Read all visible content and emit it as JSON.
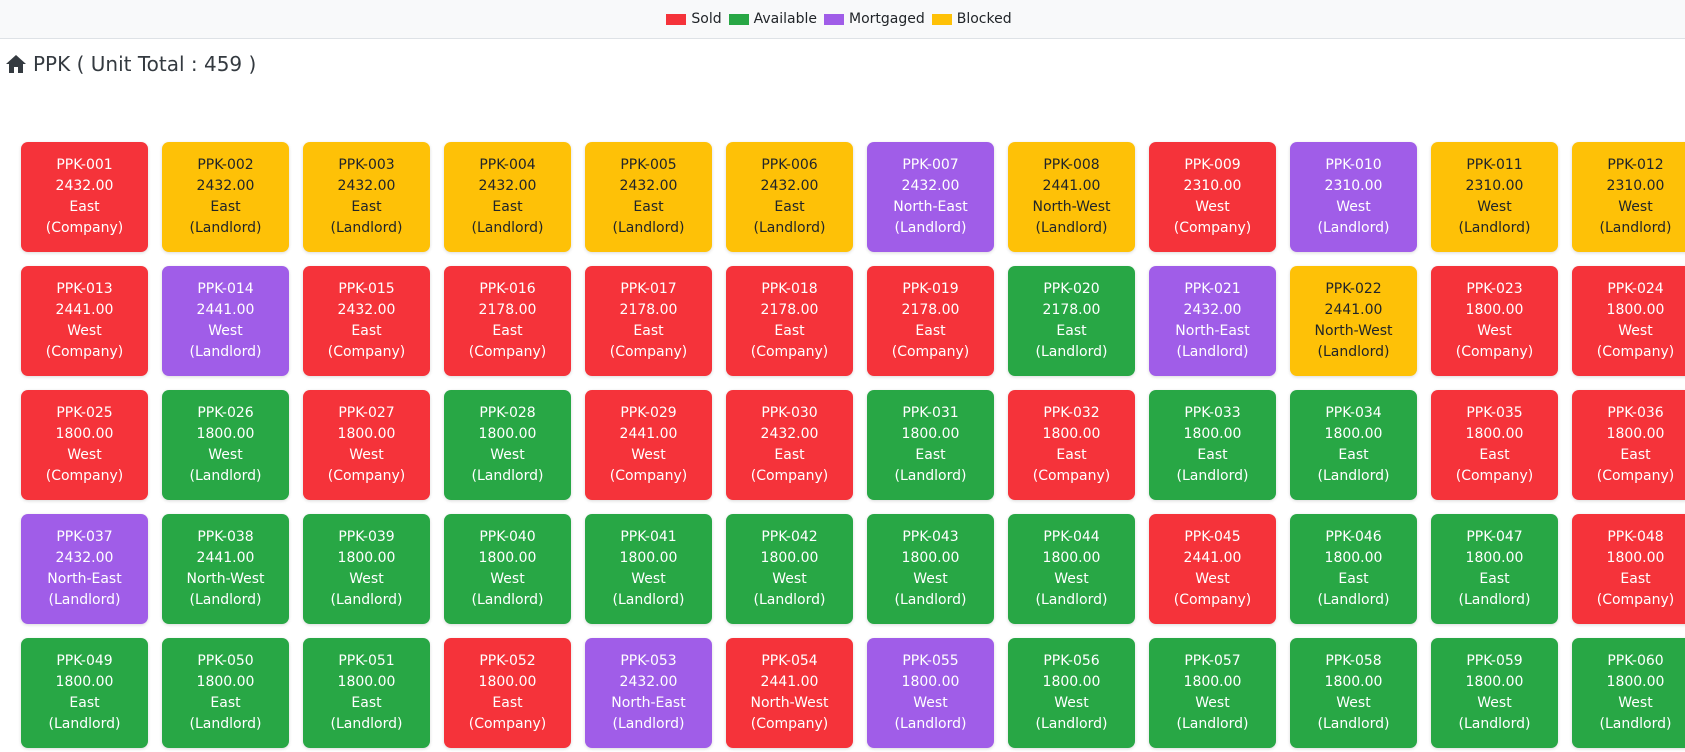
{
  "colors": {
    "sold": "#f5333a",
    "available": "#28a745",
    "mortgaged": "#a05de8",
    "blocked": "#fec107"
  },
  "legend": [
    {
      "label": "Sold",
      "status": "sold"
    },
    {
      "label": "Available",
      "status": "available"
    },
    {
      "label": "Mortgaged",
      "status": "mortgaged"
    },
    {
      "label": "Blocked",
      "status": "blocked"
    }
  ],
  "header": {
    "icon": "home-icon",
    "title": "PPK ( Unit Total : 459 )"
  },
  "units": [
    {
      "code": "PPK-001",
      "area": "2432.00",
      "facing": "East",
      "owner": "(Company)",
      "status": "sold"
    },
    {
      "code": "PPK-002",
      "area": "2432.00",
      "facing": "East",
      "owner": "(Landlord)",
      "status": "blocked"
    },
    {
      "code": "PPK-003",
      "area": "2432.00",
      "facing": "East",
      "owner": "(Landlord)",
      "status": "blocked"
    },
    {
      "code": "PPK-004",
      "area": "2432.00",
      "facing": "East",
      "owner": "(Landlord)",
      "status": "blocked"
    },
    {
      "code": "PPK-005",
      "area": "2432.00",
      "facing": "East",
      "owner": "(Landlord)",
      "status": "blocked"
    },
    {
      "code": "PPK-006",
      "area": "2432.00",
      "facing": "East",
      "owner": "(Landlord)",
      "status": "blocked"
    },
    {
      "code": "PPK-007",
      "area": "2432.00",
      "facing": "North-East",
      "owner": "(Landlord)",
      "status": "mortgaged"
    },
    {
      "code": "PPK-008",
      "area": "2441.00",
      "facing": "North-West",
      "owner": "(Landlord)",
      "status": "blocked"
    },
    {
      "code": "PPK-009",
      "area": "2310.00",
      "facing": "West",
      "owner": "(Company)",
      "status": "sold"
    },
    {
      "code": "PPK-010",
      "area": "2310.00",
      "facing": "West",
      "owner": "(Landlord)",
      "status": "mortgaged"
    },
    {
      "code": "PPK-011",
      "area": "2310.00",
      "facing": "West",
      "owner": "(Landlord)",
      "status": "blocked"
    },
    {
      "code": "PPK-012",
      "area": "2310.00",
      "facing": "West",
      "owner": "(Landlord)",
      "status": "blocked"
    },
    {
      "code": "PPK-013",
      "area": "2441.00",
      "facing": "West",
      "owner": "(Company)",
      "status": "sold"
    },
    {
      "code": "PPK-014",
      "area": "2441.00",
      "facing": "West",
      "owner": "(Landlord)",
      "status": "mortgaged"
    },
    {
      "code": "PPK-015",
      "area": "2432.00",
      "facing": "East",
      "owner": "(Company)",
      "status": "sold"
    },
    {
      "code": "PPK-016",
      "area": "2178.00",
      "facing": "East",
      "owner": "(Company)",
      "status": "sold"
    },
    {
      "code": "PPK-017",
      "area": "2178.00",
      "facing": "East",
      "owner": "(Company)",
      "status": "sold"
    },
    {
      "code": "PPK-018",
      "area": "2178.00",
      "facing": "East",
      "owner": "(Company)",
      "status": "sold"
    },
    {
      "code": "PPK-019",
      "area": "2178.00",
      "facing": "East",
      "owner": "(Company)",
      "status": "sold"
    },
    {
      "code": "PPK-020",
      "area": "2178.00",
      "facing": "East",
      "owner": "(Landlord)",
      "status": "available"
    },
    {
      "code": "PPK-021",
      "area": "2432.00",
      "facing": "North-East",
      "owner": "(Landlord)",
      "status": "mortgaged"
    },
    {
      "code": "PPK-022",
      "area": "2441.00",
      "facing": "North-West",
      "owner": "(Landlord)",
      "status": "blocked"
    },
    {
      "code": "PPK-023",
      "area": "1800.00",
      "facing": "West",
      "owner": "(Company)",
      "status": "sold"
    },
    {
      "code": "PPK-024",
      "area": "1800.00",
      "facing": "West",
      "owner": "(Company)",
      "status": "sold"
    },
    {
      "code": "PPK-025",
      "area": "1800.00",
      "facing": "West",
      "owner": "(Company)",
      "status": "sold"
    },
    {
      "code": "PPK-026",
      "area": "1800.00",
      "facing": "West",
      "owner": "(Landlord)",
      "status": "available"
    },
    {
      "code": "PPK-027",
      "area": "1800.00",
      "facing": "West",
      "owner": "(Company)",
      "status": "sold"
    },
    {
      "code": "PPK-028",
      "area": "1800.00",
      "facing": "West",
      "owner": "(Landlord)",
      "status": "available"
    },
    {
      "code": "PPK-029",
      "area": "2441.00",
      "facing": "West",
      "owner": "(Company)",
      "status": "sold"
    },
    {
      "code": "PPK-030",
      "area": "2432.00",
      "facing": "East",
      "owner": "(Company)",
      "status": "sold"
    },
    {
      "code": "PPK-031",
      "area": "1800.00",
      "facing": "East",
      "owner": "(Landlord)",
      "status": "available"
    },
    {
      "code": "PPK-032",
      "area": "1800.00",
      "facing": "East",
      "owner": "(Company)",
      "status": "sold"
    },
    {
      "code": "PPK-033",
      "area": "1800.00",
      "facing": "East",
      "owner": "(Landlord)",
      "status": "available"
    },
    {
      "code": "PPK-034",
      "area": "1800.00",
      "facing": "East",
      "owner": "(Landlord)",
      "status": "available"
    },
    {
      "code": "PPK-035",
      "area": "1800.00",
      "facing": "East",
      "owner": "(Company)",
      "status": "sold"
    },
    {
      "code": "PPK-036",
      "area": "1800.00",
      "facing": "East",
      "owner": "(Company)",
      "status": "sold"
    },
    {
      "code": "PPK-037",
      "area": "2432.00",
      "facing": "North-East",
      "owner": "(Landlord)",
      "status": "mortgaged"
    },
    {
      "code": "PPK-038",
      "area": "2441.00",
      "facing": "North-West",
      "owner": "(Landlord)",
      "status": "available"
    },
    {
      "code": "PPK-039",
      "area": "1800.00",
      "facing": "West",
      "owner": "(Landlord)",
      "status": "available"
    },
    {
      "code": "PPK-040",
      "area": "1800.00",
      "facing": "West",
      "owner": "(Landlord)",
      "status": "available"
    },
    {
      "code": "PPK-041",
      "area": "1800.00",
      "facing": "West",
      "owner": "(Landlord)",
      "status": "available"
    },
    {
      "code": "PPK-042",
      "area": "1800.00",
      "facing": "West",
      "owner": "(Landlord)",
      "status": "available"
    },
    {
      "code": "PPK-043",
      "area": "1800.00",
      "facing": "West",
      "owner": "(Landlord)",
      "status": "available"
    },
    {
      "code": "PPK-044",
      "area": "1800.00",
      "facing": "West",
      "owner": "(Landlord)",
      "status": "available"
    },
    {
      "code": "PPK-045",
      "area": "2441.00",
      "facing": "West",
      "owner": "(Company)",
      "status": "sold"
    },
    {
      "code": "PPK-046",
      "area": "1800.00",
      "facing": "East",
      "owner": "(Landlord)",
      "status": "available"
    },
    {
      "code": "PPK-047",
      "area": "1800.00",
      "facing": "East",
      "owner": "(Landlord)",
      "status": "available"
    },
    {
      "code": "PPK-048",
      "area": "1800.00",
      "facing": "East",
      "owner": "(Company)",
      "status": "sold"
    },
    {
      "code": "PPK-049",
      "area": "1800.00",
      "facing": "East",
      "owner": "(Landlord)",
      "status": "available"
    },
    {
      "code": "PPK-050",
      "area": "1800.00",
      "facing": "East",
      "owner": "(Landlord)",
      "status": "available"
    },
    {
      "code": "PPK-051",
      "area": "1800.00",
      "facing": "East",
      "owner": "(Landlord)",
      "status": "available"
    },
    {
      "code": "PPK-052",
      "area": "1800.00",
      "facing": "East",
      "owner": "(Company)",
      "status": "sold"
    },
    {
      "code": "PPK-053",
      "area": "2432.00",
      "facing": "North-East",
      "owner": "(Landlord)",
      "status": "mortgaged"
    },
    {
      "code": "PPK-054",
      "area": "2441.00",
      "facing": "North-West",
      "owner": "(Company)",
      "status": "sold"
    },
    {
      "code": "PPK-055",
      "area": "1800.00",
      "facing": "West",
      "owner": "(Landlord)",
      "status": "mortgaged"
    },
    {
      "code": "PPK-056",
      "area": "1800.00",
      "facing": "West",
      "owner": "(Landlord)",
      "status": "available"
    },
    {
      "code": "PPK-057",
      "area": "1800.00",
      "facing": "West",
      "owner": "(Landlord)",
      "status": "available"
    },
    {
      "code": "PPK-058",
      "area": "1800.00",
      "facing": "West",
      "owner": "(Landlord)",
      "status": "available"
    },
    {
      "code": "PPK-059",
      "area": "1800.00",
      "facing": "West",
      "owner": "(Landlord)",
      "status": "available"
    },
    {
      "code": "PPK-060",
      "area": "1800.00",
      "facing": "West",
      "owner": "(Landlord)",
      "status": "available"
    }
  ]
}
